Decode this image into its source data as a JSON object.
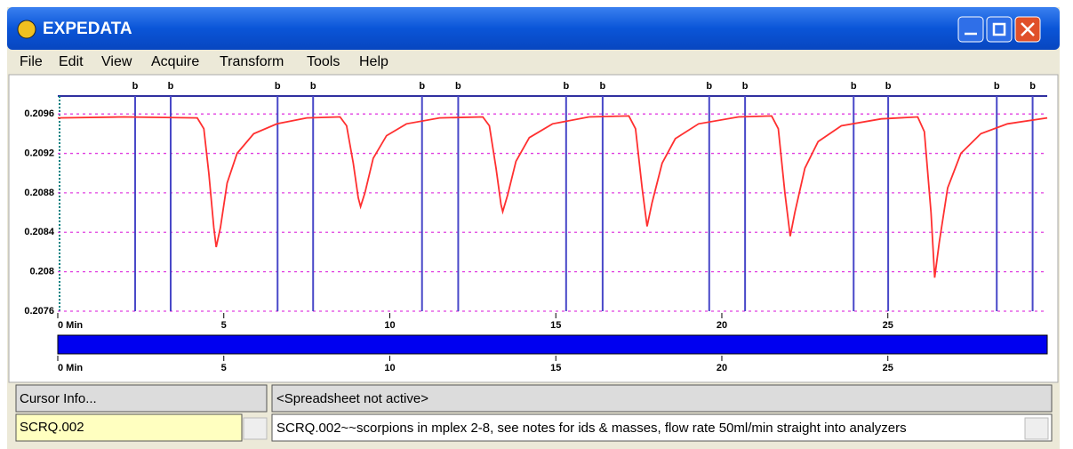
{
  "window": {
    "title": "EXPEDATA"
  },
  "menu": [
    "File",
    "Edit",
    "View",
    "Acquire",
    "Transform",
    "Tools",
    "Help"
  ],
  "chart_data": {
    "type": "line",
    "color": "#ff3030",
    "x": [
      0,
      2.0,
      4.2,
      4.4,
      4.55,
      4.7,
      4.77,
      4.9,
      5.1,
      5.4,
      5.9,
      6.6,
      7.5,
      8.5,
      8.7,
      8.9,
      9.05,
      9.12,
      9.25,
      9.5,
      9.9,
      10.5,
      11.5,
      12.8,
      13.0,
      13.2,
      13.35,
      13.4,
      13.55,
      13.8,
      14.2,
      14.9,
      16.0,
      17.2,
      17.4,
      17.6,
      17.75,
      17.9,
      18.2,
      18.6,
      19.3,
      20.5,
      21.5,
      21.7,
      21.9,
      22.06,
      22.2,
      22.5,
      22.9,
      23.6,
      24.8,
      25.9,
      26.1,
      26.3,
      26.41,
      26.55,
      26.8,
      27.2,
      27.8,
      28.6,
      29.8
    ],
    "values": [
      0.20956,
      0.20957,
      0.20956,
      0.20945,
      0.209,
      0.20845,
      0.20825,
      0.20845,
      0.2089,
      0.2092,
      0.2094,
      0.2095,
      0.20956,
      0.20957,
      0.20948,
      0.2091,
      0.20875,
      0.20866,
      0.2088,
      0.20915,
      0.20938,
      0.2095,
      0.20956,
      0.20957,
      0.20948,
      0.20905,
      0.20868,
      0.20861,
      0.20878,
      0.20912,
      0.20936,
      0.2095,
      0.20957,
      0.20958,
      0.20945,
      0.20885,
      0.20846,
      0.2087,
      0.2091,
      0.20935,
      0.2095,
      0.20957,
      0.20958,
      0.20945,
      0.2088,
      0.20836,
      0.2086,
      0.20905,
      0.20932,
      0.20948,
      0.20955,
      0.20957,
      0.20942,
      0.2086,
      0.20794,
      0.2083,
      0.20885,
      0.2092,
      0.2094,
      0.2095,
      0.20956
    ],
    "markers": {
      "label": "b",
      "color": "#4848c8",
      "x": [
        2.33,
        3.4,
        6.62,
        7.69,
        10.97,
        12.06,
        15.31,
        16.41,
        19.62,
        20.7,
        23.97,
        25.01,
        28.28,
        29.36
      ]
    },
    "xlim": [
      0,
      29.8
    ],
    "xticks": [
      {
        "value": 0,
        "label": "0 Min"
      },
      5,
      10,
      15,
      20,
      25
    ],
    "ylim": [
      0.2076,
      0.2098
    ],
    "yticks": [
      0.2076,
      0.208,
      0.2084,
      0.2088,
      0.2092,
      0.2096
    ],
    "grid": true,
    "grid_color": "#e040e0"
  },
  "panels": {
    "cursor_info": "Cursor Info...",
    "spreadsheet": "<Spreadsheet not active>",
    "file": "SCRQ.002",
    "description": "SCRQ.002~~scorpions in mplex 2-8, see notes for ids & masses, flow rate 50ml/min straight into analyzers"
  }
}
